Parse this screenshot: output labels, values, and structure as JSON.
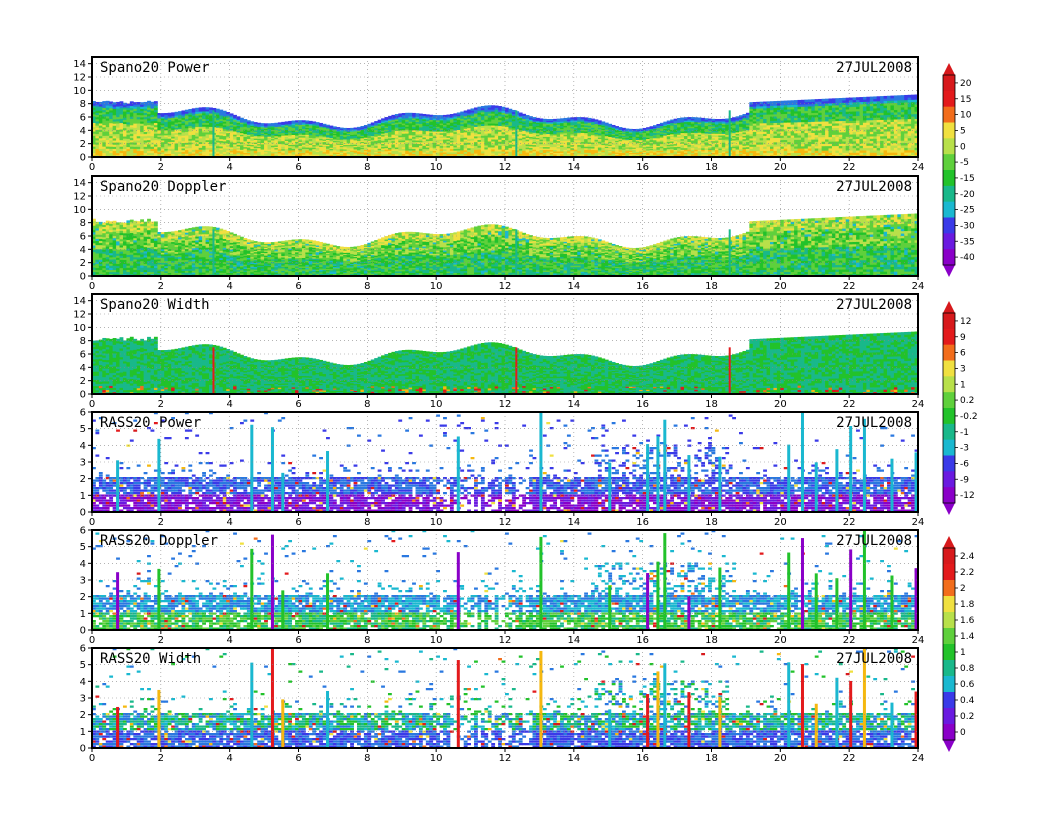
{
  "chart_data": [
    {
      "type": "heatmap",
      "title": "Spano20 Power",
      "date": "27JUL2008",
      "xlim": [
        0,
        24
      ],
      "ylim": [
        0,
        15
      ],
      "xticks": [
        "0",
        "2",
        "4",
        "6",
        "8",
        "10",
        "12",
        "14",
        "16",
        "18",
        "20",
        "22",
        "24"
      ],
      "yticks": [
        "0",
        "2",
        "4",
        "6",
        "8",
        "10",
        "12",
        "14"
      ],
      "colorbar": "power"
    },
    {
      "type": "heatmap",
      "title": "Spano20 Doppler",
      "date": "27JUL2008",
      "xlim": [
        0,
        24
      ],
      "ylim": [
        0,
        15
      ],
      "xticks": [
        "0",
        "2",
        "4",
        "6",
        "8",
        "10",
        "12",
        "14",
        "16",
        "18",
        "20",
        "22",
        "24"
      ],
      "yticks": [
        "0",
        "2",
        "4",
        "6",
        "8",
        "10",
        "12",
        "14"
      ],
      "colorbar": "power"
    },
    {
      "type": "heatmap",
      "title": "Spano20 Width",
      "date": "27JUL2008",
      "xlim": [
        0,
        24
      ],
      "ylim": [
        0,
        15
      ],
      "xticks": [
        "0",
        "2",
        "4",
        "6",
        "8",
        "10",
        "12",
        "14",
        "16",
        "18",
        "20",
        "22",
        "24"
      ],
      "yticks": [
        "0",
        "2",
        "4",
        "6",
        "8",
        "10",
        "12",
        "14"
      ],
      "colorbar": "doppler"
    },
    {
      "type": "heatmap",
      "title": "RASS20 Power",
      "date": "27JUL2008",
      "xlim": [
        0,
        24
      ],
      "ylim": [
        0,
        6
      ],
      "xticks": [
        "0",
        "2",
        "4",
        "6",
        "8",
        "10",
        "12",
        "14",
        "16",
        "18",
        "20",
        "22",
        "24"
      ],
      "yticks": [
        "0",
        "1",
        "2",
        "3",
        "4",
        "5",
        "6"
      ],
      "colorbar": "doppler"
    },
    {
      "type": "heatmap",
      "title": "RASS20 Doppler",
      "date": "27JUL2008",
      "xlim": [
        0,
        24
      ],
      "ylim": [
        0,
        6
      ],
      "xticks": [
        "0",
        "2",
        "4",
        "6",
        "8",
        "10",
        "12",
        "14",
        "16",
        "18",
        "20",
        "22",
        "24"
      ],
      "yticks": [
        "0",
        "1",
        "2",
        "3",
        "4",
        "5",
        "6"
      ],
      "colorbar": "width"
    },
    {
      "type": "heatmap",
      "title": "RASS20 Width",
      "date": "27JUL2008",
      "xlim": [
        0,
        24
      ],
      "ylim": [
        0,
        6
      ],
      "xticks": [
        "0",
        "2",
        "4",
        "6",
        "8",
        "10",
        "12",
        "14",
        "16",
        "18",
        "20",
        "22",
        "24"
      ],
      "yticks": [
        "0",
        "1",
        "2",
        "3",
        "4",
        "5",
        "6"
      ],
      "colorbar": "width"
    }
  ],
  "colorbars": {
    "power": {
      "labels": [
        "20",
        "15",
        "10",
        "5",
        "0",
        "-5",
        "-15",
        "-20",
        "-25",
        "-30",
        "-35",
        "-40"
      ]
    },
    "doppler": {
      "labels": [
        "12",
        "9",
        "6",
        "3",
        "1",
        "0.2",
        "-0.2",
        "-1",
        "-3",
        "-6",
        "-9",
        "-12"
      ]
    },
    "width": {
      "labels": [
        "2.4",
        "2.2",
        "2",
        "1.8",
        "1.6",
        "1.4",
        "1",
        "0.8",
        "0.6",
        "0.4",
        "0.2",
        "0"
      ]
    }
  },
  "palette": [
    "#d7191c",
    "#e31a1c",
    "#f26d1c",
    "#f5b80f",
    "#f0e040",
    "#b8e04a",
    "#5fd03c",
    "#22c22a",
    "#19b88a",
    "#1ab8d0",
    "#2a78e0",
    "#3a3ae8",
    "#6a1ae0",
    "#8a00c8"
  ]
}
